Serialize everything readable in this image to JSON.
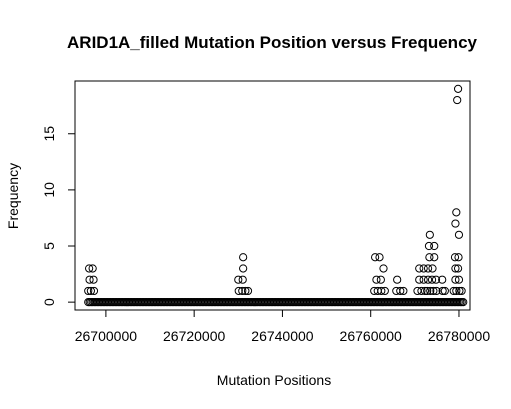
{
  "chart_data": {
    "type": "scatter",
    "title": "ARID1A_filled Mutation Position versus Frequency",
    "xlabel": "Mutation Positions",
    "ylabel": "Frequency",
    "xlim": [
      26693000,
      26782500
    ],
    "ylim": [
      -0.7,
      19.7
    ],
    "xticks": [
      {
        "value": 26700000,
        "label": "26700000"
      },
      {
        "value": 26720000,
        "label": "26720000"
      },
      {
        "value": 26740000,
        "label": "26740000"
      },
      {
        "value": 26760000,
        "label": "26760000"
      },
      {
        "value": 26780000,
        "label": "26780000"
      }
    ],
    "yticks": [
      {
        "value": 0,
        "label": "0"
      },
      {
        "value": 5,
        "label": "5"
      },
      {
        "value": 10,
        "label": "10"
      },
      {
        "value": 15,
        "label": "15"
      }
    ],
    "marker": "open-circle",
    "grid": false,
    "baseline_zero_range": [
      26696000,
      26781000
    ],
    "points": [
      {
        "x": 26696200,
        "y": 3
      },
      {
        "x": 26697000,
        "y": 3
      },
      {
        "x": 26696300,
        "y": 2
      },
      {
        "x": 26697200,
        "y": 2
      },
      {
        "x": 26696000,
        "y": 1
      },
      {
        "x": 26696600,
        "y": 1
      },
      {
        "x": 26697300,
        "y": 1
      },
      {
        "x": 26730000,
        "y": 2
      },
      {
        "x": 26731000,
        "y": 2
      },
      {
        "x": 26730100,
        "y": 1
      },
      {
        "x": 26730900,
        "y": 1
      },
      {
        "x": 26731600,
        "y": 1
      },
      {
        "x": 26732200,
        "y": 1
      },
      {
        "x": 26731100,
        "y": 4
      },
      {
        "x": 26731100,
        "y": 3
      },
      {
        "x": 26761000,
        "y": 4
      },
      {
        "x": 26762000,
        "y": 4
      },
      {
        "x": 26761300,
        "y": 2
      },
      {
        "x": 26762300,
        "y": 2
      },
      {
        "x": 26762900,
        "y": 3
      },
      {
        "x": 26760800,
        "y": 1
      },
      {
        "x": 26761600,
        "y": 1
      },
      {
        "x": 26762400,
        "y": 1
      },
      {
        "x": 26763200,
        "y": 1
      },
      {
        "x": 26766000,
        "y": 2
      },
      {
        "x": 26765800,
        "y": 1
      },
      {
        "x": 26766700,
        "y": 1
      },
      {
        "x": 26767400,
        "y": 1
      },
      {
        "x": 26771000,
        "y": 3
      },
      {
        "x": 26772000,
        "y": 3
      },
      {
        "x": 26771000,
        "y": 2
      },
      {
        "x": 26772000,
        "y": 2
      },
      {
        "x": 26770600,
        "y": 1
      },
      {
        "x": 26771500,
        "y": 1
      },
      {
        "x": 26772300,
        "y": 1
      },
      {
        "x": 26773400,
        "y": 6
      },
      {
        "x": 26773200,
        "y": 5
      },
      {
        "x": 26774400,
        "y": 5
      },
      {
        "x": 26773300,
        "y": 4
      },
      {
        "x": 26774400,
        "y": 4
      },
      {
        "x": 26773000,
        "y": 3
      },
      {
        "x": 26774000,
        "y": 3
      },
      {
        "x": 26773000,
        "y": 2
      },
      {
        "x": 26773900,
        "y": 2
      },
      {
        "x": 26774800,
        "y": 2
      },
      {
        "x": 26772800,
        "y": 1
      },
      {
        "x": 26773500,
        "y": 1
      },
      {
        "x": 26774200,
        "y": 1
      },
      {
        "x": 26774900,
        "y": 1
      },
      {
        "x": 26776200,
        "y": 2
      },
      {
        "x": 26776300,
        "y": 1
      },
      {
        "x": 26776800,
        "y": 1
      },
      {
        "x": 26779800,
        "y": 19
      },
      {
        "x": 26779600,
        "y": 18
      },
      {
        "x": 26779400,
        "y": 8
      },
      {
        "x": 26779200,
        "y": 7
      },
      {
        "x": 26780000,
        "y": 6
      },
      {
        "x": 26779100,
        "y": 4
      },
      {
        "x": 26779900,
        "y": 4
      },
      {
        "x": 26779200,
        "y": 3
      },
      {
        "x": 26779800,
        "y": 3
      },
      {
        "x": 26779200,
        "y": 2
      },
      {
        "x": 26780000,
        "y": 2
      },
      {
        "x": 26778800,
        "y": 1
      },
      {
        "x": 26779400,
        "y": 1
      },
      {
        "x": 26780100,
        "y": 1
      },
      {
        "x": 26780600,
        "y": 1
      }
    ]
  }
}
